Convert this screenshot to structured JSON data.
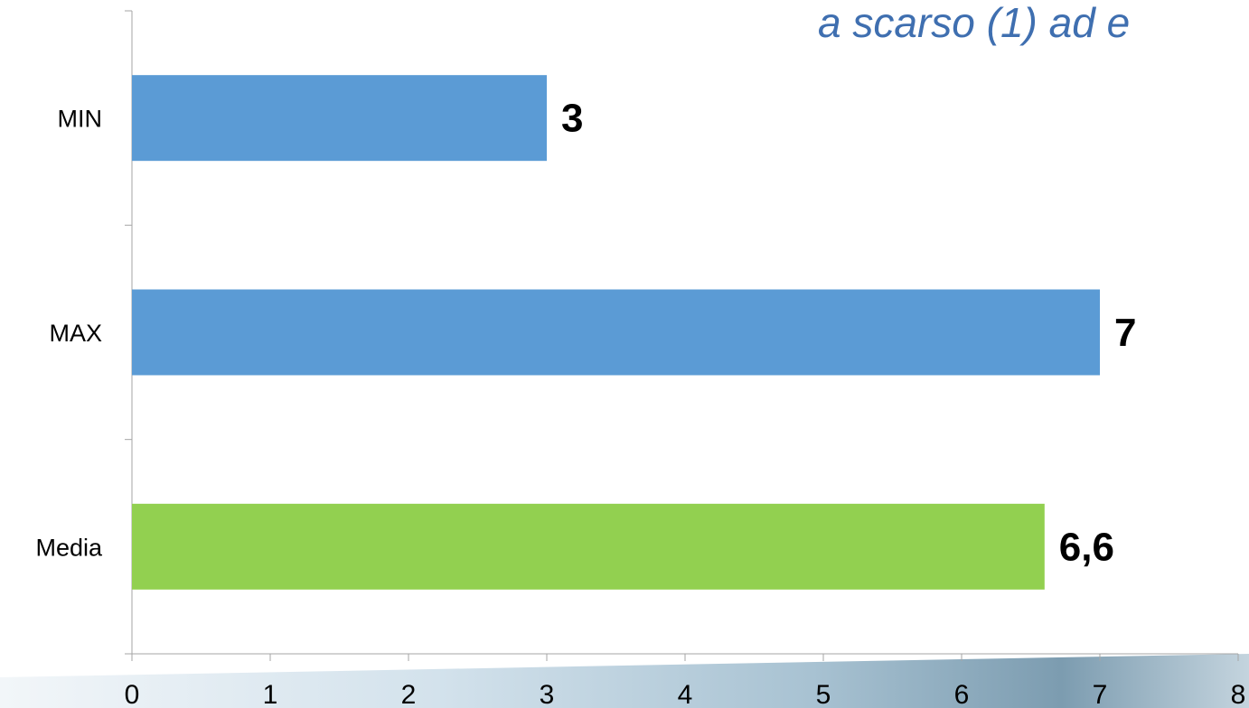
{
  "subtitle": "a scarso (1) ad e",
  "colors": {
    "bar_blue": "#5B9BD5",
    "bar_green": "#92D050",
    "subtitle": "#3F6FB0",
    "axis": "#A6A6A6"
  },
  "chart_data": {
    "type": "bar",
    "orientation": "horizontal",
    "categories": [
      "MIN",
      "MAX",
      "Media"
    ],
    "values": [
      3,
      7,
      6.6
    ],
    "data_labels": [
      "3",
      "7",
      "6,6"
    ],
    "bar_colors": [
      "#5B9BD5",
      "#5B9BD5",
      "#92D050"
    ],
    "x_ticks": [
      "0",
      "1",
      "2",
      "3",
      "4",
      "5",
      "6",
      "7",
      "8"
    ],
    "xlim": [
      0,
      8
    ],
    "grid": false,
    "legend": "none"
  }
}
